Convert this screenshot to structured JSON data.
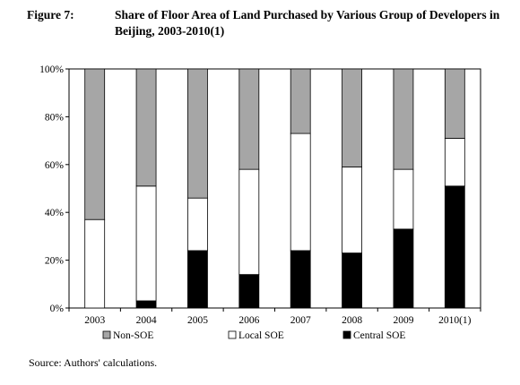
{
  "title": {
    "label": "Figure 7:",
    "line1": "Share of Floor Area of Land Purchased by Various Group of Developers in",
    "line2": "Beijing, 2003-2010(1)"
  },
  "source_note": "Source: Authors' calculations.",
  "colors": {
    "non_soe": "#a6a6a6",
    "local_soe": "#ffffff",
    "central_soe": "#000000"
  },
  "chart_data": {
    "type": "bar",
    "stacked": true,
    "percent": true,
    "categories": [
      "2003",
      "2004",
      "2005",
      "2006",
      "2007",
      "2008",
      "2009",
      "2010(1)"
    ],
    "series": [
      {
        "name": "Central SOE",
        "values": [
          0,
          3,
          24,
          14,
          24,
          23,
          33,
          51
        ]
      },
      {
        "name": "Local SOE",
        "values": [
          37,
          48,
          22,
          44,
          49,
          36,
          25,
          20
        ]
      },
      {
        "name": "Non-SOE",
        "values": [
          63,
          49,
          54,
          42,
          27,
          41,
          42,
          29
        ]
      }
    ],
    "ylim": [
      0,
      100
    ],
    "yticks": [
      "0%",
      "20%",
      "40%",
      "60%",
      "80%",
      "100%"
    ],
    "legend": {
      "position": "bottom",
      "entries": [
        "Non-SOE",
        "Local SOE",
        "Central SOE"
      ]
    },
    "grid": false
  }
}
